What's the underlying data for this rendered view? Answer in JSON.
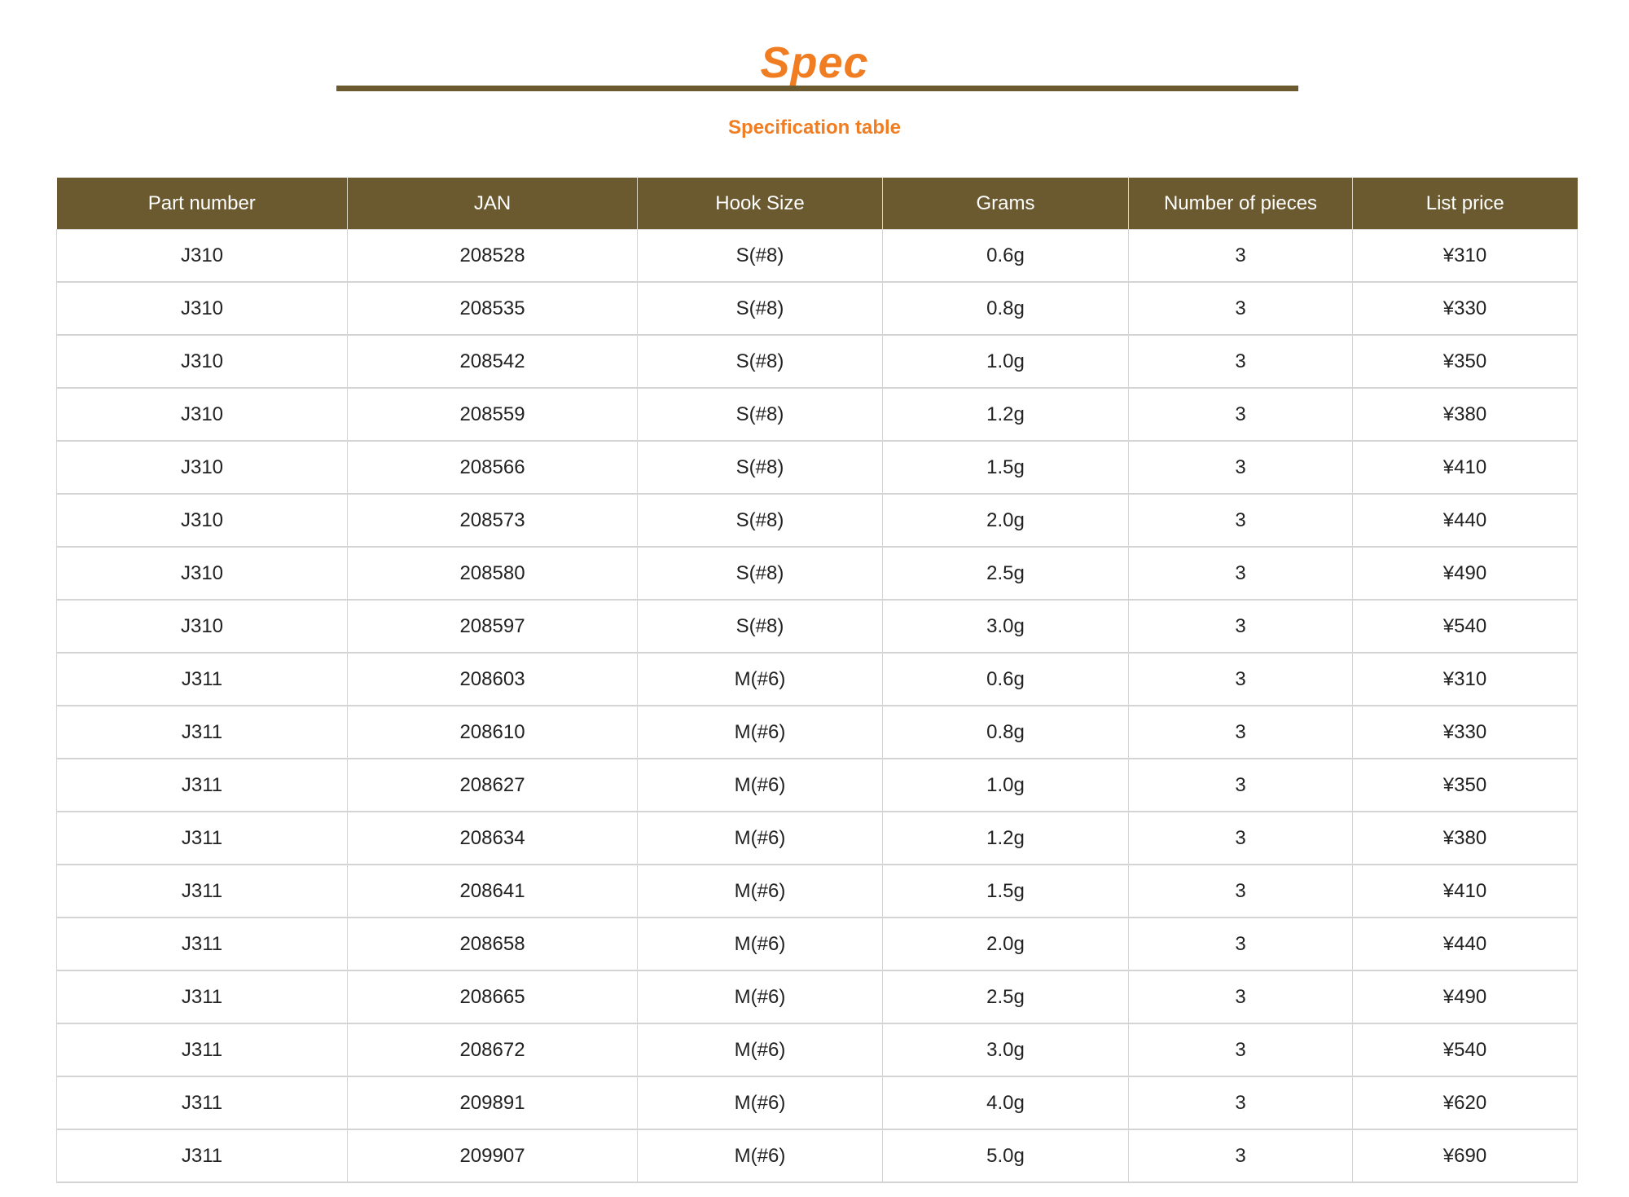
{
  "title": "Spec",
  "subtitle": "Specification table",
  "colors": {
    "accent": "#f07d22",
    "header_bg": "#6b5a30"
  },
  "table": {
    "headers": [
      "Part number",
      "JAN",
      "Hook Size",
      "Grams",
      "Number of pieces",
      "List price"
    ],
    "rows": [
      [
        "J310",
        "208528",
        "S(#8)",
        "0.6g",
        "3",
        "¥310"
      ],
      [
        "J310",
        "208535",
        "S(#8)",
        "0.8g",
        "3",
        "¥330"
      ],
      [
        "J310",
        "208542",
        "S(#8)",
        "1.0g",
        "3",
        "¥350"
      ],
      [
        "J310",
        "208559",
        "S(#8)",
        "1.2g",
        "3",
        "¥380"
      ],
      [
        "J310",
        "208566",
        "S(#8)",
        "1.5g",
        "3",
        "¥410"
      ],
      [
        "J310",
        "208573",
        "S(#8)",
        "2.0g",
        "3",
        "¥440"
      ],
      [
        "J310",
        "208580",
        "S(#8)",
        "2.5g",
        "3",
        "¥490"
      ],
      [
        "J310",
        "208597",
        "S(#8)",
        "3.0g",
        "3",
        "¥540"
      ],
      [
        "J311",
        "208603",
        "M(#6)",
        "0.6g",
        "3",
        "¥310"
      ],
      [
        "J311",
        "208610",
        "M(#6)",
        "0.8g",
        "3",
        "¥330"
      ],
      [
        "J311",
        "208627",
        "M(#6)",
        "1.0g",
        "3",
        "¥350"
      ],
      [
        "J311",
        "208634",
        "M(#6)",
        "1.2g",
        "3",
        "¥380"
      ],
      [
        "J311",
        "208641",
        "M(#6)",
        "1.5g",
        "3",
        "¥410"
      ],
      [
        "J311",
        "208658",
        "M(#6)",
        "2.0g",
        "3",
        "¥440"
      ],
      [
        "J311",
        "208665",
        "M(#6)",
        "2.5g",
        "3",
        "¥490"
      ],
      [
        "J311",
        "208672",
        "M(#6)",
        "3.0g",
        "3",
        "¥540"
      ],
      [
        "J311",
        "209891",
        "M(#6)",
        "4.0g",
        "3",
        "¥620"
      ],
      [
        "J311",
        "209907",
        "M(#6)",
        "5.0g",
        "3",
        "¥690"
      ]
    ]
  }
}
